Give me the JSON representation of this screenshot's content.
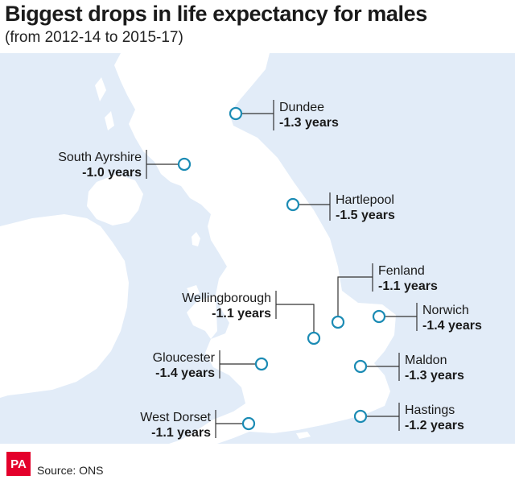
{
  "title": "Biggest drops in life expectancy for males",
  "subtitle": "(from 2012-14 to 2015-17)",
  "colors": {
    "sea": "#e2ecf8",
    "land": "#ffffff",
    "marker": "#1b8bb4",
    "leader": "#333333",
    "brand": "#e4002b"
  },
  "places": [
    {
      "id": "dundee",
      "name": "Dundee",
      "value": "-1.3 years"
    },
    {
      "id": "south-ayrshire",
      "name": "South Ayrshire",
      "value": "-1.0 years"
    },
    {
      "id": "hartlepool",
      "name": "Hartlepool",
      "value": "-1.5 years"
    },
    {
      "id": "fenland",
      "name": "Fenland",
      "value": "-1.1 years"
    },
    {
      "id": "wellingborough",
      "name": "Wellingborough",
      "value": "-1.1 years"
    },
    {
      "id": "norwich",
      "name": "Norwich",
      "value": "-1.4 years"
    },
    {
      "id": "gloucester",
      "name": "Gloucester",
      "value": "-1.4 years"
    },
    {
      "id": "maldon",
      "name": "Maldon",
      "value": "-1.3 years"
    },
    {
      "id": "west-dorset",
      "name": "West Dorset",
      "value": "-1.1 years"
    },
    {
      "id": "hastings",
      "name": "Hastings",
      "value": "-1.2 years"
    }
  ],
  "footer": {
    "logo": "PA",
    "source": "Source: ONS"
  }
}
